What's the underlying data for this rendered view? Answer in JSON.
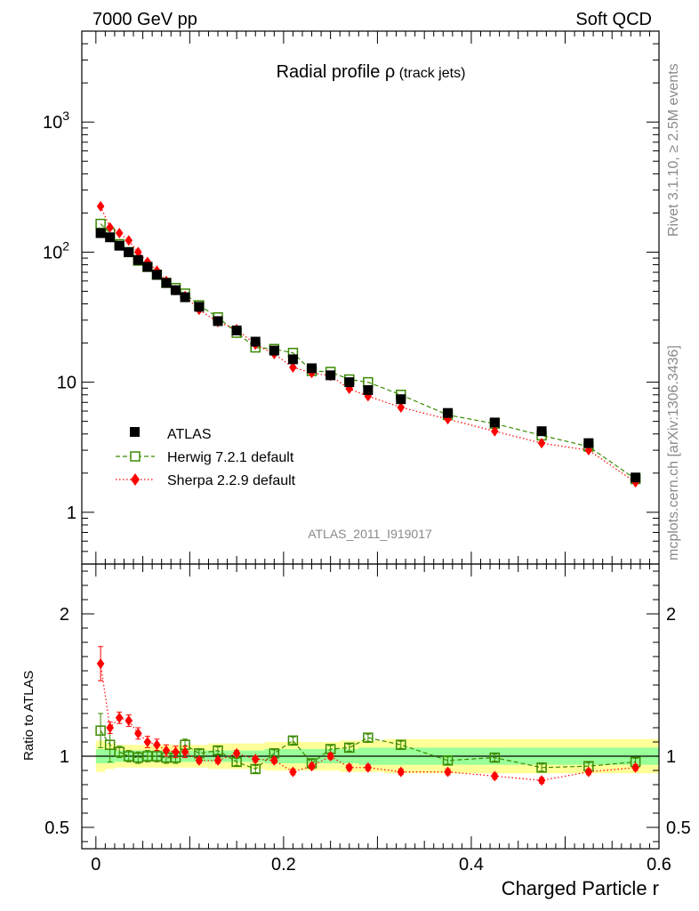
{
  "header": {
    "left": "7000 GeV pp",
    "right": "Soft QCD"
  },
  "side_labels": {
    "rivet": "Rivet 3.1.10, ≥ 2.5M events",
    "mcplots": "mcplots.cern.ch [arXiv:1306.3436]"
  },
  "chart_data": [
    {
      "type": "scatter",
      "panel": "main",
      "title_main": "Radial profile ",
      "title_symbol": "ρ",
      "title_sub": " (track jets)",
      "watermark": "ATLAS_2011_I919017",
      "xlabel": "Charged Particle r",
      "ylabel": "",
      "yscale": "log",
      "xlim": [
        -0.015,
        0.6
      ],
      "ylim": [
        0.4,
        5000
      ],
      "x_ticks": [
        "0",
        "0.2",
        "0.4",
        "0.6"
      ],
      "y_ticks": [
        "1",
        "10",
        "10^2",
        "10^3"
      ],
      "legend": {
        "position": "bottom-left",
        "entries": [
          "ATLAS",
          "Herwig 7.2.1 default",
          "Sherpa 2.2.9 default"
        ]
      },
      "x": [
        0.005,
        0.015,
        0.025,
        0.035,
        0.045,
        0.055,
        0.065,
        0.075,
        0.085,
        0.095,
        0.11,
        0.13,
        0.15,
        0.17,
        0.19,
        0.21,
        0.23,
        0.25,
        0.27,
        0.29,
        0.325,
        0.375,
        0.425,
        0.475,
        0.525,
        0.575
      ],
      "series": [
        {
          "name": "ATLAS",
          "color": "#000000",
          "marker": "filled-square",
          "values": [
            140,
            130,
            112,
            100,
            87,
            77,
            67,
            58,
            51,
            45,
            38,
            29.5,
            25,
            20.5,
            17.5,
            15,
            12.8,
            11.3,
            10,
            8.7,
            7.4,
            5.8,
            4.9,
            4.2,
            3.4,
            1.85
          ]
        },
        {
          "name": "Herwig 7.2.1 default",
          "color": "#3a8a00",
          "marker": "open-square",
          "line": "dashed",
          "values": [
            165,
            140,
            115,
            100,
            86,
            77,
            67,
            58,
            53,
            48,
            39,
            31.5,
            24,
            18.5,
            18,
            16.8,
            12.2,
            12,
            10.5,
            10,
            8,
            5.6,
            4.8,
            3.9,
            3.2,
            1.8
          ]
        },
        {
          "name": "Sherpa 2.2.9 default",
          "color": "#ff0000",
          "marker": "filled-diamond",
          "line": "dotted",
          "values": [
            225,
            155,
            140,
            123,
            100,
            84,
            72,
            60,
            51,
            46,
            36,
            29,
            25.5,
            19.5,
            16.5,
            13,
            11.8,
            11.2,
            8.9,
            7.8,
            6.4,
            5.2,
            4.2,
            3.4,
            3.0,
            1.7
          ]
        }
      ]
    },
    {
      "type": "scatter",
      "panel": "ratio",
      "ylabel": "Ratio to ATLAS",
      "xlabel": "Charged Particle r",
      "xlim": [
        -0.015,
        0.6
      ],
      "ylim": [
        0.35,
        2.35
      ],
      "y_ticks": [
        "0.5",
        "1",
        "2"
      ],
      "x": [
        0.005,
        0.015,
        0.025,
        0.035,
        0.045,
        0.055,
        0.065,
        0.075,
        0.085,
        0.095,
        0.11,
        0.13,
        0.15,
        0.17,
        0.19,
        0.21,
        0.23,
        0.25,
        0.27,
        0.29,
        0.325,
        0.375,
        0.425,
        0.475,
        0.525,
        0.575
      ],
      "bands": {
        "green_halfwidth": [
          0.05,
          0.05,
          0.04,
          0.04,
          0.04,
          0.04,
          0.04,
          0.04,
          0.04,
          0.04,
          0.04,
          0.04,
          0.04,
          0.04,
          0.05,
          0.05,
          0.05,
          0.05,
          0.05,
          0.06,
          0.06,
          0.06,
          0.06,
          0.06,
          0.06,
          0.06
        ],
        "yellow_halfwidth": [
          0.11,
          0.09,
          0.08,
          0.08,
          0.08,
          0.08,
          0.08,
          0.08,
          0.08,
          0.08,
          0.08,
          0.09,
          0.09,
          0.09,
          0.1,
          0.1,
          0.1,
          0.1,
          0.11,
          0.11,
          0.12,
          0.12,
          0.12,
          0.12,
          0.12,
          0.12
        ]
      },
      "series": [
        {
          "name": "Herwig 7.2.1 default",
          "color": "#3a8a00",
          "values": [
            1.18,
            1.08,
            1.03,
            1.0,
            0.99,
            1.0,
            1.0,
            0.99,
            0.99,
            1.08,
            1.02,
            1.04,
            0.96,
            0.91,
            1.02,
            1.11,
            0.95,
            1.05,
            1.06,
            1.13,
            1.08,
            0.97,
            0.99,
            0.92,
            0.93,
            0.96
          ]
        },
        {
          "name": "Sherpa 2.2.9 default",
          "color": "#ff0000",
          "values": [
            1.65,
            1.2,
            1.27,
            1.25,
            1.16,
            1.1,
            1.08,
            1.04,
            1.03,
            1.03,
            0.97,
            0.97,
            1.02,
            0.98,
            0.97,
            0.89,
            0.93,
            1.0,
            0.92,
            0.92,
            0.89,
            0.89,
            0.86,
            0.83,
            0.89,
            0.92
          ]
        }
      ]
    }
  ]
}
